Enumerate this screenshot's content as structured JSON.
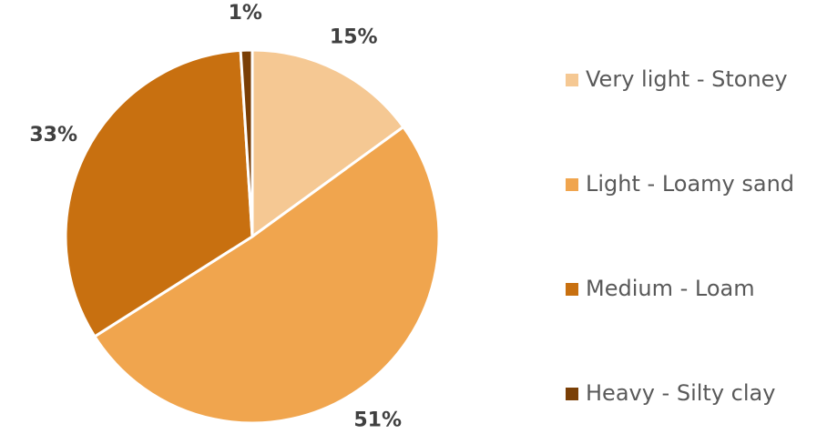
{
  "chart_data": {
    "type": "pie",
    "categories": [
      "Very light - Stoney",
      "Light - Loamy sand",
      "Medium - Loam",
      "Heavy - Silty clay"
    ],
    "values": [
      15,
      51,
      33,
      1
    ],
    "value_labels": [
      "15%",
      "51%",
      "33%",
      "1%"
    ],
    "colors": [
      "#f5c893",
      "#f0a54e",
      "#c87010",
      "#7a3f06"
    ],
    "legend": "right"
  }
}
